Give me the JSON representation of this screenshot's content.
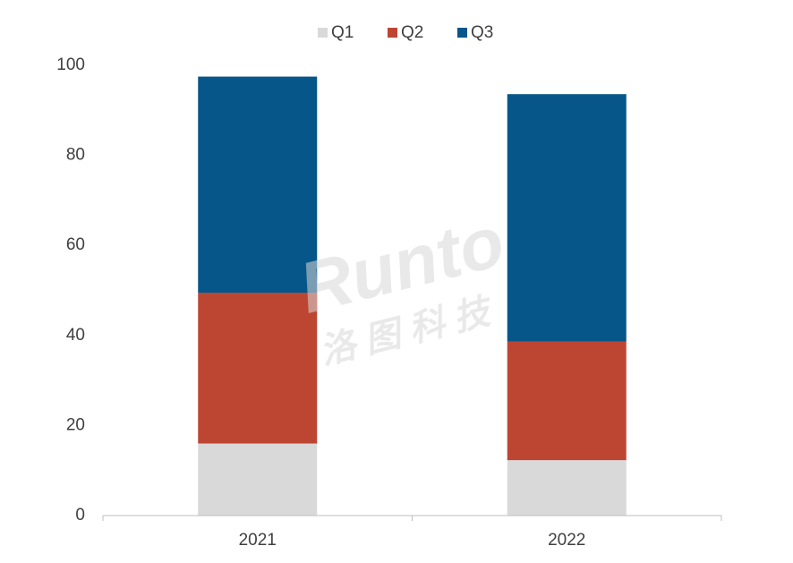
{
  "chart_data": {
    "type": "stacked_bar",
    "categories": [
      "2021",
      "2022"
    ],
    "series": [
      {
        "name": "Q1",
        "color": "#d9d9d9",
        "values": [
          16,
          12.3
        ]
      },
      {
        "name": "Q2",
        "color": "#bd4632",
        "values": [
          33.5,
          26.3
        ]
      },
      {
        "name": "Q3",
        "color": "#07568a",
        "values": [
          48,
          55
        ]
      }
    ],
    "ylim": [
      0,
      100
    ],
    "yticks": [
      0,
      20,
      40,
      60,
      80,
      100
    ],
    "grid": false,
    "legend": "top",
    "watermark": [
      "Runto",
      "洛 图 科 技"
    ]
  }
}
